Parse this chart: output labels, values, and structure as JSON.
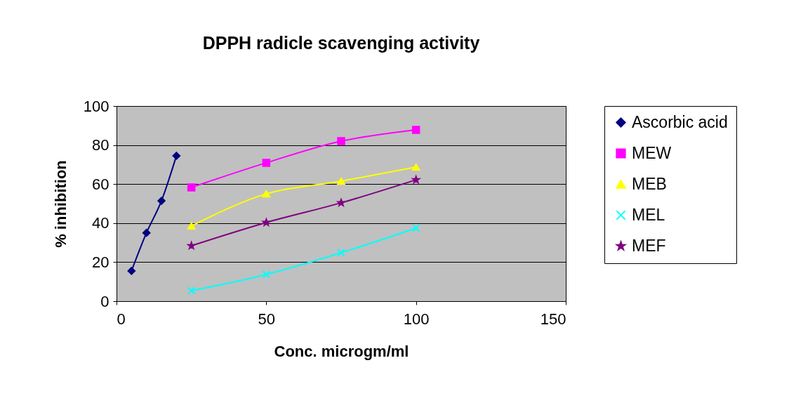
{
  "chart_data": {
    "type": "line",
    "title": "DPPH radicle scavenging activity",
    "xlabel": "Conc. microgm/ml",
    "ylabel": "% inhibition",
    "xlim": [
      0,
      150
    ],
    "xticks": [
      0,
      50,
      100,
      150
    ],
    "ylim": [
      0,
      100
    ],
    "yticks": [
      0,
      20,
      40,
      60,
      80,
      100
    ],
    "grid": "y",
    "legend": "right",
    "series": [
      {
        "name": "Ascorbic acid",
        "color": "#000080",
        "marker": "diamond",
        "x": [
          5,
          10,
          15,
          20
        ],
        "values": [
          15.5,
          35,
          51.4,
          74.5
        ]
      },
      {
        "name": "MEW",
        "color": "#ff00ff",
        "marker": "square",
        "x": [
          25,
          50,
          75,
          100
        ],
        "values": [
          58.3,
          70.9,
          82,
          87.8
        ]
      },
      {
        "name": "MEB",
        "color": "#ffff00",
        "marker": "triangle",
        "x": [
          25,
          50,
          75,
          100
        ],
        "values": [
          38.5,
          55,
          61.5,
          68.7
        ]
      },
      {
        "name": "MEL",
        "color": "#00ffff",
        "marker": "cross",
        "x": [
          25,
          50,
          75,
          100
        ],
        "values": [
          5.4,
          13.7,
          24.8,
          37.4
        ]
      },
      {
        "name": "MEF",
        "color": "#800080",
        "marker": "star",
        "x": [
          25,
          50,
          75,
          100
        ],
        "values": [
          28.4,
          40.3,
          50.4,
          62.2
        ]
      }
    ]
  }
}
